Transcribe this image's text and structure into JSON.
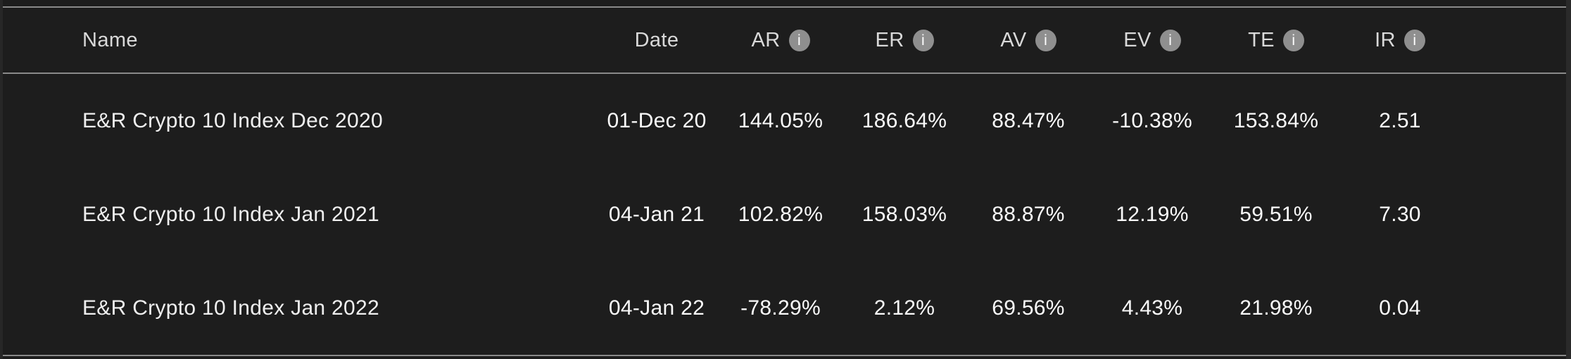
{
  "theme": {
    "page_bg": "#272727",
    "table_bg": "#1d1d1d",
    "border_color": "#8a8a8a",
    "header_text_color": "#d9d9d9",
    "value_text_color": "#fafafa",
    "info_icon_bg": "#8f8f8f"
  },
  "icons": {
    "info_glyph": "i"
  },
  "table": {
    "columns": [
      {
        "key": "name",
        "label": "Name",
        "has_info": false
      },
      {
        "key": "date",
        "label": "Date",
        "has_info": false
      },
      {
        "key": "ar",
        "label": "AR",
        "has_info": true
      },
      {
        "key": "er",
        "label": "ER",
        "has_info": true
      },
      {
        "key": "av",
        "label": "AV",
        "has_info": true
      },
      {
        "key": "ev",
        "label": "EV",
        "has_info": true
      },
      {
        "key": "te",
        "label": "TE",
        "has_info": true
      },
      {
        "key": "ir",
        "label": "IR",
        "has_info": true
      }
    ],
    "rows": [
      {
        "cells": [
          "E&R Crypto 10 Index Dec 2020",
          "01-Dec 20",
          "144.05%",
          "186.64%",
          "88.47%",
          "-10.38%",
          "153.84%",
          "2.51"
        ]
      },
      {
        "cells": [
          "E&R Crypto 10 Index Jan 2021",
          "04-Jan 21",
          "102.82%",
          "158.03%",
          "88.87%",
          "12.19%",
          "59.51%",
          "7.30"
        ]
      },
      {
        "cells": [
          "E&R Crypto 10 Index Jan 2022",
          "04-Jan 22",
          "-78.29%",
          "2.12%",
          "69.56%",
          "4.43%",
          "21.98%",
          "0.04"
        ]
      }
    ]
  }
}
